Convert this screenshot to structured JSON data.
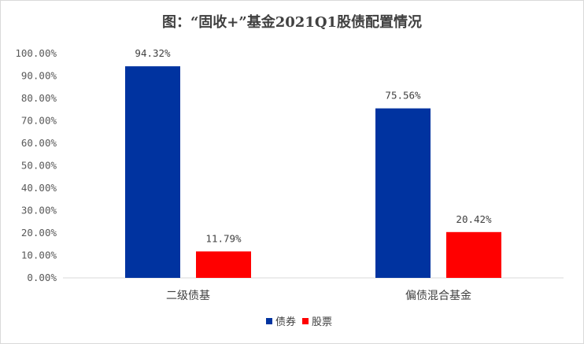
{
  "chart_data": {
    "type": "bar",
    "title": "图：“固收+”基金2021Q1股债配置情况",
    "categories": [
      "二级债基",
      "偏债混合基金"
    ],
    "series": [
      {
        "name": "债券",
        "values": [
          94.32,
          75.56
        ],
        "labels": [
          "94.32%",
          "75.56%"
        ],
        "color": "#0033a0"
      },
      {
        "name": "股票",
        "values": [
          11.79,
          20.42
        ],
        "labels": [
          "11.79%",
          "20.42%"
        ],
        "color": "#ff0000"
      }
    ],
    "yticks": [
      "0.00%",
      "10.00%",
      "20.00%",
      "30.00%",
      "40.00%",
      "50.00%",
      "60.00%",
      "70.00%",
      "80.00%",
      "90.00%",
      "100.00%"
    ],
    "ylim": [
      0,
      100
    ],
    "grid": false,
    "legend_position": "bottom"
  }
}
